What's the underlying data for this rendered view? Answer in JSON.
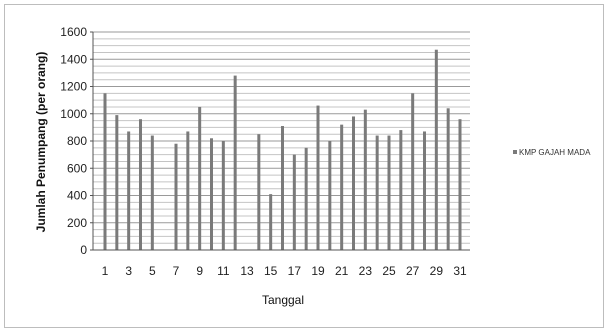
{
  "chart_data": {
    "type": "bar",
    "title": "",
    "xlabel": "Tanggal",
    "ylabel": "Jumlah Penumpang (per orang)",
    "ylim": [
      0,
      1600
    ],
    "yticks": [
      0,
      200,
      400,
      600,
      800,
      1000,
      1200,
      1400,
      1600
    ],
    "x_tick_labels": [
      "1",
      "3",
      "5",
      "7",
      "9",
      "11",
      "13",
      "15",
      "17",
      "19",
      "21",
      "23",
      "25",
      "27",
      "29",
      "31"
    ],
    "categories": [
      "1",
      "2",
      "3",
      "4",
      "5",
      "6",
      "7",
      "8",
      "9",
      "10",
      "11",
      "12",
      "13",
      "14",
      "15",
      "16",
      "17",
      "18",
      "19",
      "20",
      "21",
      "22",
      "23",
      "24",
      "25",
      "26",
      "27",
      "28",
      "29",
      "30",
      "31"
    ],
    "grid": true,
    "legend_position": "right",
    "series": [
      {
        "name": "KMP GAJAH MADA",
        "color": "#7a7a7a",
        "values": [
          1150,
          990,
          870,
          960,
          840,
          0,
          780,
          870,
          1050,
          820,
          800,
          1280,
          0,
          850,
          410,
          910,
          700,
          750,
          1060,
          800,
          920,
          980,
          1030,
          840,
          840,
          880,
          1150,
          870,
          1470,
          1040,
          960
        ]
      }
    ]
  }
}
